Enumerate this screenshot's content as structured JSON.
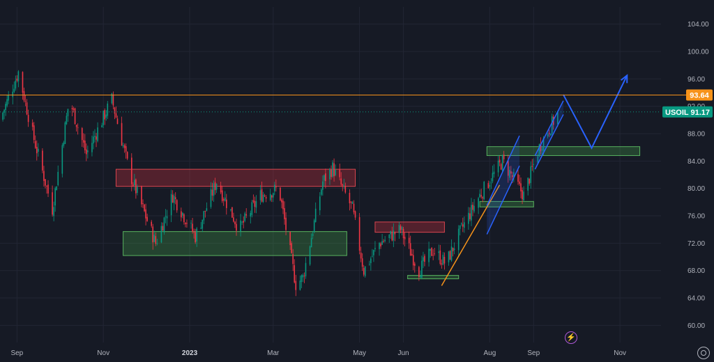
{
  "chart_data": {
    "type": "candlestick",
    "symbol": "USOIL",
    "last_price": "91.17",
    "marked_price": "93.64",
    "ylim": [
      57.5,
      106.5
    ],
    "y_ticks": [
      "104.00",
      "100.00",
      "96.00",
      "92.00",
      "88.00",
      "84.00",
      "80.00",
      "76.00",
      "72.00",
      "68.00",
      "64.00",
      "60.00"
    ],
    "x_range": [
      "2022-08-20",
      "2023-11-30"
    ],
    "x_ticks": [
      {
        "date": "2022-09-01",
        "label": "Sep",
        "bold": false
      },
      {
        "date": "2022-11-01",
        "label": "Nov",
        "bold": false
      },
      {
        "date": "2023-01-01",
        "label": "2023",
        "bold": true
      },
      {
        "date": "2023-03-01",
        "label": "Mar",
        "bold": false
      },
      {
        "date": "2023-05-01",
        "label": "May",
        "bold": false
      },
      {
        "date": "2023-06-01",
        "label": "Jun",
        "bold": false
      },
      {
        "date": "2023-08-01",
        "label": "Aug",
        "bold": false
      },
      {
        "date": "2023-09-01",
        "label": "Sep",
        "bold": false
      },
      {
        "date": "2023-11-01",
        "label": "Nov",
        "bold": false
      }
    ],
    "colors": {
      "up": "#089981",
      "down": "#f23645",
      "orange_line": "#f7931a",
      "projection": "#2962ff",
      "last_price_tag": "#089981"
    },
    "price_path": [
      {
        "date": "2022-08-20",
        "price": 90
      },
      {
        "date": "2022-09-02",
        "price": 97
      },
      {
        "date": "2022-09-12",
        "price": 88
      },
      {
        "date": "2022-09-26",
        "price": 77
      },
      {
        "date": "2022-10-08",
        "price": 93
      },
      {
        "date": "2022-10-20",
        "price": 85
      },
      {
        "date": "2022-11-07",
        "price": 93
      },
      {
        "date": "2022-11-20",
        "price": 82
      },
      {
        "date": "2022-12-08",
        "price": 72
      },
      {
        "date": "2022-12-20",
        "price": 79
      },
      {
        "date": "2023-01-05",
        "price": 73
      },
      {
        "date": "2023-01-20",
        "price": 81
      },
      {
        "date": "2023-02-05",
        "price": 74
      },
      {
        "date": "2023-02-20",
        "price": 79
      },
      {
        "date": "2023-03-05",
        "price": 80
      },
      {
        "date": "2023-03-17",
        "price": 66
      },
      {
        "date": "2023-03-22",
        "price": 67
      },
      {
        "date": "2023-04-05",
        "price": 81
      },
      {
        "date": "2023-04-12",
        "price": 83
      },
      {
        "date": "2023-04-26",
        "price": 77
      },
      {
        "date": "2023-05-04",
        "price": 68
      },
      {
        "date": "2023-05-15",
        "price": 72
      },
      {
        "date": "2023-05-30",
        "price": 74
      },
      {
        "date": "2023-06-12",
        "price": 68
      },
      {
        "date": "2023-06-22",
        "price": 71
      },
      {
        "date": "2023-07-01",
        "price": 69
      },
      {
        "date": "2023-07-12",
        "price": 74
      },
      {
        "date": "2023-07-25",
        "price": 79
      },
      {
        "date": "2023-08-10",
        "price": 84
      },
      {
        "date": "2023-08-25",
        "price": 79
      },
      {
        "date": "2023-09-05",
        "price": 86
      },
      {
        "date": "2023-09-18",
        "price": 91
      }
    ],
    "horizontal_levels": [
      {
        "price": 93.64,
        "label": "93.64",
        "color": "#f7931a"
      }
    ],
    "zones": [
      {
        "kind": "resistance",
        "from": "2022-11-10",
        "to": "2023-04-28",
        "low": 80.3,
        "high": 82.8
      },
      {
        "kind": "support",
        "from": "2022-11-15",
        "to": "2023-04-22",
        "low": 70.2,
        "high": 73.7
      },
      {
        "kind": "resistance",
        "from": "2023-05-12",
        "to": "2023-06-30",
        "low": 73.6,
        "high": 75.1
      },
      {
        "kind": "support",
        "from": "2023-06-04",
        "to": "2023-07-10",
        "low": 66.8,
        "high": 67.3
      },
      {
        "kind": "support",
        "from": "2023-07-25",
        "to": "2023-09-01",
        "low": 77.3,
        "high": 78.1
      },
      {
        "kind": "support",
        "from": "2023-07-30",
        "to": "2023-11-15",
        "low": 84.8,
        "high": 86.1
      }
    ],
    "trendline": {
      "from": {
        "date": "2023-06-28",
        "price": 65.8
      },
      "to": {
        "date": "2023-08-08",
        "price": 80.5
      }
    },
    "channels": [
      {
        "a1": {
          "date": "2023-07-30",
          "price": 77.5
        },
        "a2": {
          "date": "2023-08-22",
          "price": 87.7
        },
        "b1": {
          "date": "2023-07-30",
          "price": 73.3
        },
        "b2": {
          "date": "2023-08-22",
          "price": 83.3
        }
      },
      {
        "a1": {
          "date": "2023-09-02",
          "price": 84.8
        },
        "a2": {
          "date": "2023-09-22",
          "price": 92.8
        },
        "b1": {
          "date": "2023-09-02",
          "price": 82.8
        },
        "b2": {
          "date": "2023-09-22",
          "price": 90.8
        }
      }
    ],
    "projection": [
      {
        "date": "2023-09-22",
        "price": 93.7
      },
      {
        "date": "2023-10-12",
        "price": 85.9
      },
      {
        "date": "2023-11-06",
        "price": 96.5
      }
    ]
  },
  "ui": {
    "bolt_icon": "lightning-bolt-icon",
    "settings_icon": "gear-icon",
    "bolt_glyph": "⚡"
  }
}
